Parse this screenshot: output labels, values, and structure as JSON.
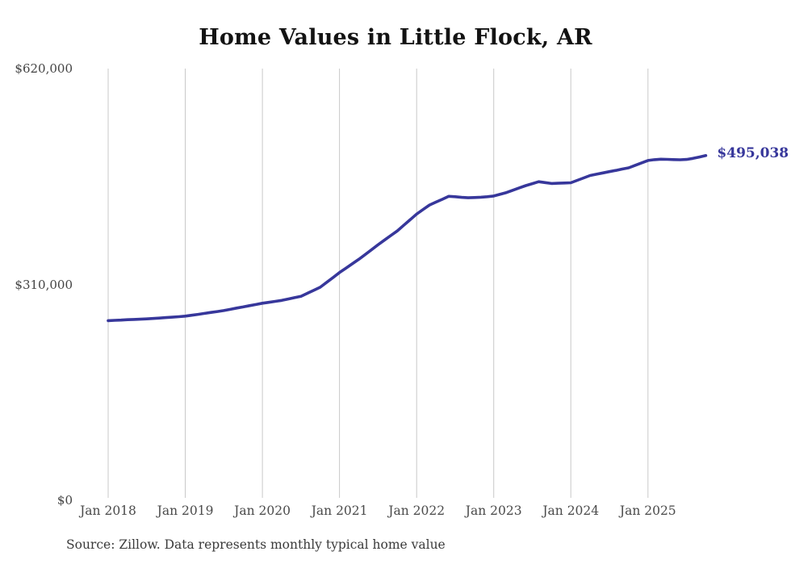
{
  "source": "Source: Zillow. Data represents monthly typical home value",
  "chart_data": {
    "type": "line",
    "title": "Home Values in Little Flock, AR",
    "unit": "USD",
    "frequency": "monthly",
    "start_month": "Jan 2018",
    "end_month": "Oct 2025",
    "legend": "none",
    "grid": "vertical-only",
    "ylim": [
      0,
      620000
    ],
    "line_color": "#37379b",
    "grid_color": "#c9c9c9",
    "end_label": "$495,038",
    "final_value": 495038,
    "y_ticks": [
      {
        "label": "$0",
        "value": 0
      },
      {
        "label": "$310,000",
        "value": 310000
      },
      {
        "label": "$620,000",
        "value": 620000
      }
    ],
    "x_ticks": [
      "Jan 2018",
      "Jan 2019",
      "Jan 2020",
      "Jan 2021",
      "Jan 2022",
      "Jan 2023",
      "Jan 2024",
      "Jan 2025"
    ],
    "series": [
      {
        "name": "Typical home value",
        "values": [
          258000,
          258400,
          258800,
          259300,
          259700,
          260100,
          260500,
          261100,
          261700,
          262400,
          263000,
          263700,
          264500,
          265700,
          267000,
          268400,
          269800,
          271100,
          272500,
          274200,
          276000,
          277700,
          279500,
          281200,
          283000,
          284300,
          285700,
          287000,
          289000,
          291000,
          293000,
          297300,
          301700,
          306000,
          313000,
          320000,
          327000,
          333300,
          339700,
          346000,
          353000,
          360000,
          367000,
          373700,
          380300,
          387000,
          395000,
          403000,
          411000,
          417500,
          424000,
          428200,
          432300,
          436500,
          436000,
          435000,
          434500,
          434800,
          435300,
          436000,
          437000,
          439500,
          442000,
          445300,
          448700,
          452000,
          454800,
          457500,
          456200,
          455000,
          455300,
          455700,
          456000,
          459500,
          463000,
          466500,
          468300,
          470200,
          472000,
          473800,
          475700,
          477500,
          481000,
          484500,
          488000,
          489200,
          489800,
          489600,
          489300,
          489000,
          489500,
          491000,
          493000,
          495038
        ]
      }
    ]
  }
}
